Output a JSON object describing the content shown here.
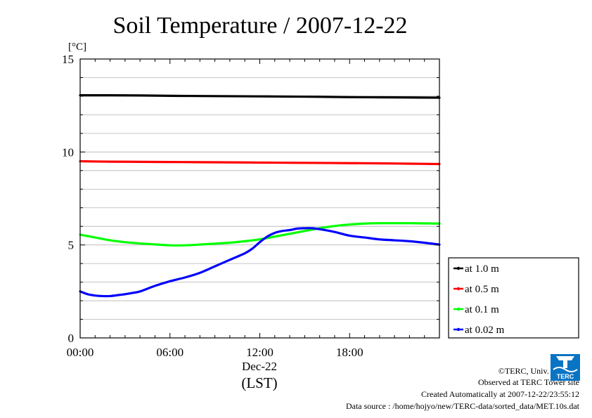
{
  "chart_data": {
    "type": "line",
    "title": "Soil Temperature / 2007-12-22",
    "yunit": "[°C]",
    "ylim": [
      0,
      15
    ],
    "y_ticks": [
      "0",
      "5",
      "10",
      "15"
    ],
    "y_minor_step": 1,
    "xlim_hours": [
      0,
      24
    ],
    "x_ticks": [
      {
        "hour": 0,
        "label": "00:00"
      },
      {
        "hour": 6,
        "label": "06:00"
      },
      {
        "hour": 12,
        "label": "12:00"
      },
      {
        "hour": 18,
        "label": "18:00"
      }
    ],
    "date_label": "Dec-22",
    "time_zone_label": "(LST)",
    "grid": true,
    "legend_position": "bottom-right",
    "series": [
      {
        "name": "at 1.0 m",
        "color": "#000000",
        "x": [
          0,
          2,
          4,
          6,
          8,
          10,
          12,
          14,
          16,
          18,
          20,
          22,
          24
        ],
        "y": [
          13.05,
          13.05,
          13.04,
          13.02,
          13.01,
          13.0,
          12.99,
          12.98,
          12.97,
          12.95,
          12.94,
          12.93,
          12.92
        ]
      },
      {
        "name": "at 0.5 m",
        "color": "#ff0000",
        "x": [
          0,
          2,
          4,
          6,
          8,
          10,
          12,
          14,
          16,
          18,
          20,
          22,
          24
        ],
        "y": [
          9.5,
          9.48,
          9.47,
          9.46,
          9.45,
          9.44,
          9.43,
          9.42,
          9.41,
          9.4,
          9.39,
          9.37,
          9.35
        ]
      },
      {
        "name": "at 0.1 m",
        "color": "#00ff00",
        "x": [
          0,
          1,
          2,
          3,
          4,
          5,
          6,
          7,
          8,
          9,
          10,
          11,
          12,
          13,
          14,
          15,
          16,
          17,
          18,
          19,
          20,
          21,
          22,
          23,
          24
        ],
        "y": [
          5.55,
          5.4,
          5.25,
          5.15,
          5.08,
          5.03,
          4.98,
          4.98,
          5.02,
          5.07,
          5.12,
          5.2,
          5.3,
          5.45,
          5.6,
          5.75,
          5.9,
          6.02,
          6.1,
          6.15,
          6.17,
          6.17,
          6.17,
          6.16,
          6.15
        ]
      },
      {
        "name": "at 0.02 m",
        "color": "#0000ff",
        "x": [
          0,
          0.5,
          1,
          1.5,
          2,
          2.5,
          3,
          3.5,
          4,
          5,
          6,
          7,
          8,
          9,
          10,
          11,
          11.5,
          12,
          12.5,
          13,
          13.5,
          14,
          14.5,
          15,
          15.5,
          16,
          17,
          18,
          19,
          20,
          21,
          22,
          23,
          24
        ],
        "y": [
          2.5,
          2.35,
          2.28,
          2.25,
          2.25,
          2.3,
          2.35,
          2.42,
          2.5,
          2.8,
          3.05,
          3.25,
          3.5,
          3.85,
          4.2,
          4.55,
          4.8,
          5.15,
          5.45,
          5.65,
          5.75,
          5.8,
          5.88,
          5.9,
          5.9,
          5.85,
          5.7,
          5.5,
          5.4,
          5.3,
          5.25,
          5.2,
          5.12,
          5.02
        ]
      }
    ]
  },
  "footer": {
    "copyright": "©TERC, Univ. Tsukuba",
    "site": "Observed at TERC Tower site",
    "created": "Created Automatically at 2007-12-22/23:55:12",
    "source": "Data source : /home/hojyo/new/TERC-data/sorted_data/MET.10s.dat"
  },
  "logo": {
    "text": "TERC",
    "color": "#0a74c4"
  }
}
